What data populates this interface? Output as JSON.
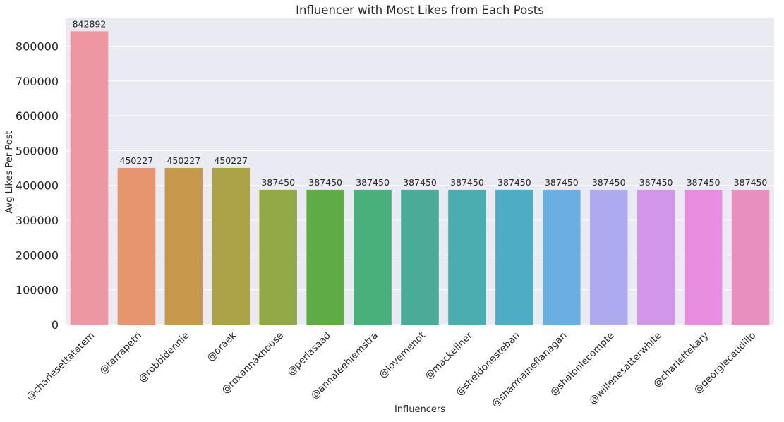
{
  "chart_data": {
    "type": "bar",
    "title": "Influencer with Most Likes from Each Posts",
    "xlabel": "Influencers",
    "ylabel": "Avg Likes Per Post",
    "ylim": [
      0,
      880000
    ],
    "yticks": [
      0,
      100000,
      200000,
      300000,
      400000,
      500000,
      600000,
      700000,
      800000
    ],
    "grid": true,
    "categories": [
      "@charlesettatatem",
      "@tarrapetri",
      "@robbidennie",
      "@oraek",
      "@roxannaknouse",
      "@perlasaad",
      "@annaleehiemstra",
      "@lovemenot",
      "@mackellner",
      "@sheldonesteban",
      "@sharmaineflanagan",
      "@shalonlecompte",
      "@willenesatterwhite",
      "@charlettekary",
      "@georgiecaudillo"
    ],
    "values": [
      842892,
      450227,
      450227,
      450227,
      387450,
      387450,
      387450,
      387450,
      387450,
      387450,
      387450,
      387450,
      387450,
      387450,
      387450
    ],
    "data_labels": [
      "842892",
      "450227",
      "450227",
      "450227",
      "387450",
      "387450",
      "387450",
      "387450",
      "387450",
      "387450",
      "387450",
      "387450",
      "387450",
      "387450",
      "387450"
    ],
    "colors": [
      "#ed97a3",
      "#e6956e",
      "#c8994c",
      "#aca247",
      "#92a746",
      "#5fac47",
      "#49b07b",
      "#4aac98",
      "#4badaf",
      "#4cadc5",
      "#6aaee2",
      "#adaaed",
      "#d097e9",
      "#e78cdf",
      "#e98fbf"
    ],
    "background": "#eaeaf2",
    "gridcolor": "#ffffff"
  }
}
